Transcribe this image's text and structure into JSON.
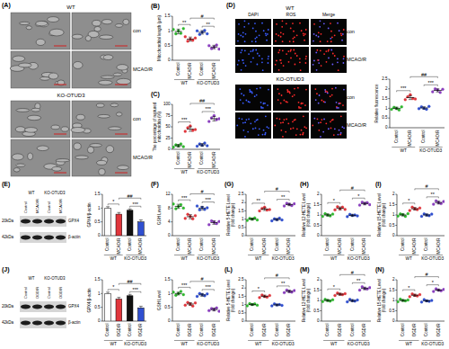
{
  "chart_data": [
    {
      "type": "dot",
      "title": "(B)",
      "y_label": "Mitochondrial length (μm)",
      "categories": [
        "Control",
        "MCAO/R",
        "Control",
        "MCAO/R"
      ],
      "groups": [
        "WT",
        "KO-OTUD3"
      ],
      "values": [
        0.98,
        0.72,
        0.95,
        0.45
      ],
      "errors": [
        0.08,
        0.07,
        0.06,
        0.06
      ],
      "points": [
        [
          1.05,
          0.9,
          1.0,
          0.92,
          1.08
        ],
        [
          0.8,
          0.65,
          0.72,
          0.68,
          0.76
        ],
        [
          1.0,
          0.88,
          0.96,
          1.02,
          0.9
        ],
        [
          0.5,
          0.4,
          0.45,
          0.52,
          0.38
        ]
      ],
      "colors": [
        "#2eb82e",
        "#e0363c",
        "#2f4fd0",
        "#8a3fbf"
      ],
      "ylim": [
        0,
        1.5
      ],
      "yticks": [
        0,
        0.5,
        1,
        1.5
      ],
      "annotations": [
        {
          "text": "**",
          "between": [
            0,
            1
          ]
        },
        {
          "text": "**",
          "between": [
            2,
            3
          ]
        },
        {
          "text": "#",
          "between": [
            1,
            3
          ]
        }
      ]
    },
    {
      "type": "dot",
      "title": "(C)",
      "y_label": "The percentage of ruptured mitochondria (%)",
      "categories": [
        "Control",
        "MCAO/R",
        "Control",
        "MCAO/R"
      ],
      "groups": [
        "WT",
        "KO-OTUD3"
      ],
      "values": [
        8,
        45,
        10,
        68
      ],
      "errors": [
        3,
        5,
        3,
        5
      ],
      "points": [
        [
          5,
          10,
          8,
          12,
          6
        ],
        [
          40,
          48,
          52,
          42,
          44
        ],
        [
          7,
          12,
          9,
          14,
          8
        ],
        [
          62,
          70,
          75,
          66,
          68
        ]
      ],
      "colors": [
        "#2eb82e",
        "#e0363c",
        "#2f4fd0",
        "#8a3fbf"
      ],
      "ylim": [
        0,
        100
      ],
      "yticks": [
        0,
        25,
        50,
        75,
        100
      ],
      "annotations": [
        {
          "text": "***",
          "between": [
            0,
            1
          ]
        },
        {
          "text": "***",
          "between": [
            2,
            3
          ]
        },
        {
          "text": "##",
          "between": [
            1,
            3
          ]
        }
      ]
    },
    {
      "type": "dot",
      "y_label": "Relative fluorescence",
      "categories": [
        "Control",
        "MCAO/R",
        "Control",
        "MCAO/R"
      ],
      "groups": [
        "WT",
        "KO-OTUD3"
      ],
      "values": [
        1.0,
        1.55,
        1.02,
        1.92
      ],
      "errors": [
        0.06,
        0.1,
        0.06,
        0.08
      ],
      "points": [
        [
          0.95,
          1.05,
          1.0,
          0.92,
          1.08
        ],
        [
          1.45,
          1.6,
          1.7,
          1.5,
          1.48
        ],
        [
          0.98,
          1.08,
          1.0,
          0.95,
          1.1
        ],
        [
          1.85,
          2.0,
          1.95,
          1.82,
          1.98
        ]
      ],
      "colors": [
        "#2eb82e",
        "#e0363c",
        "#2f4fd0",
        "#8a3fbf"
      ],
      "ylim": [
        0,
        2.5
      ],
      "yticks": [
        0,
        0.5,
        1,
        1.5,
        2,
        2.5
      ],
      "annotations": [
        {
          "text": "***",
          "between": [
            0,
            1
          ]
        },
        {
          "text": "***",
          "between": [
            2,
            3
          ]
        },
        {
          "text": "##",
          "between": [
            1,
            3
          ]
        }
      ]
    },
    {
      "type": "bar",
      "y_label": "GPX4/β-actin",
      "categories": [
        "Control",
        "MCAO/R",
        "Control",
        "MCAO/R"
      ],
      "groups": [
        "WT",
        "KO-OTUD3"
      ],
      "values": [
        1.0,
        0.78,
        0.92,
        0.5
      ],
      "errors": [
        0.05,
        0.06,
        0.05,
        0.07
      ],
      "colors": [
        "#ffffff",
        "#e0363c",
        "#111111",
        "#2f4fd0"
      ],
      "ylim": [
        0,
        1.5
      ],
      "yticks": [
        0,
        0.5,
        1,
        1.5
      ],
      "annotations": [
        {
          "text": "*",
          "between": [
            0,
            1
          ]
        },
        {
          "text": "***",
          "between": [
            2,
            3
          ]
        },
        {
          "text": "##",
          "between": [
            1,
            3
          ]
        }
      ]
    },
    {
      "type": "dot",
      "title": "(F)",
      "y_label": "GSH Level",
      "categories": [
        "Control",
        "MCAO/R",
        "Control",
        "MCAO/R"
      ],
      "groups": [
        "WT",
        "KO-OTUD3"
      ],
      "values": [
        8.5,
        5.5,
        8.0,
        3.8
      ],
      "errors": [
        0.6,
        0.6,
        0.5,
        0.5
      ],
      "points": [
        [
          9.2,
          7.8,
          8.5,
          9.0,
          8.0
        ],
        [
          5.0,
          6.2,
          5.6,
          4.9,
          5.8
        ],
        [
          8.6,
          7.5,
          8.2,
          7.6,
          8.1
        ],
        [
          3.2,
          4.3,
          3.9,
          3.5,
          4.1
        ]
      ],
      "colors": [
        "#2eb82e",
        "#e0363c",
        "#2f4fd0",
        "#8a3fbf"
      ],
      "ylim": [
        0,
        12
      ],
      "yticks": [
        0,
        4,
        8,
        12
      ],
      "annotations": [
        {
          "text": "***",
          "between": [
            0,
            1
          ]
        },
        {
          "text": "***",
          "between": [
            2,
            3
          ]
        },
        {
          "text": "#",
          "between": [
            1,
            3
          ]
        }
      ]
    },
    {
      "type": "dot",
      "title": "(G)",
      "y_label": "Relative 5-HETE Level (fold change)",
      "categories": [
        "Control",
        "MCAO/R",
        "Control",
        "MCAO/R"
      ],
      "groups": [
        "WT",
        "KO-OTUD3"
      ],
      "values": [
        1.0,
        1.6,
        0.98,
        1.88
      ],
      "errors": [
        0.06,
        0.08,
        0.06,
        0.07
      ],
      "points": [
        [
          0.92,
          1.05,
          1.0,
          1.08,
          0.95
        ],
        [
          1.5,
          1.65,
          1.72,
          1.55,
          1.58
        ],
        [
          0.9,
          1.02,
          0.97,
          1.06,
          0.95
        ],
        [
          1.8,
          1.95,
          1.9,
          1.82,
          1.93
        ]
      ],
      "colors": [
        "#2eb82e",
        "#e0363c",
        "#2f4fd0",
        "#8a3fbf"
      ],
      "ylim": [
        0,
        2.5
      ],
      "yticks": [
        0,
        0.5,
        1,
        1.5,
        2,
        2.5
      ],
      "annotations": [
        {
          "text": "**",
          "between": [
            0,
            1
          ]
        },
        {
          "text": "**",
          "between": [
            2,
            3
          ]
        },
        {
          "text": "#",
          "between": [
            1,
            3
          ]
        }
      ]
    },
    {
      "type": "dot",
      "title": "(H)",
      "y_label": "Relative 12-HETE Level (fold change)",
      "categories": [
        "Control",
        "MCAO/R",
        "Control",
        "MCAO/R"
      ],
      "groups": [
        "WT",
        "KO-OTUD3"
      ],
      "values": [
        1.0,
        1.32,
        0.98,
        1.55
      ],
      "errors": [
        0.05,
        0.07,
        0.05,
        0.06
      ],
      "points": [
        [
          0.94,
          1.06,
          1.0,
          0.96,
          1.04
        ],
        [
          1.25,
          1.4,
          1.3,
          1.38,
          1.27
        ],
        [
          0.92,
          1.03,
          0.98,
          1.0,
          0.96
        ],
        [
          1.48,
          1.62,
          1.55,
          1.6,
          1.5
        ]
      ],
      "colors": [
        "#2eb82e",
        "#e0363c",
        "#2f4fd0",
        "#8a3fbf"
      ],
      "ylim": [
        0,
        2
      ],
      "yticks": [
        0,
        0.5,
        1,
        1.5,
        2
      ],
      "annotations": [
        {
          "text": "*",
          "between": [
            0,
            1
          ]
        },
        {
          "text": "*",
          "between": [
            2,
            3
          ]
        },
        {
          "text": "#",
          "between": [
            1,
            3
          ]
        }
      ]
    },
    {
      "type": "dot",
      "title": "(I)",
      "y_label": "Relative 15-HETE Level (fold change)",
      "categories": [
        "Control",
        "MCAO/R",
        "Control",
        "MCAO/R"
      ],
      "groups": [
        "WT",
        "KO-OTUD3"
      ],
      "values": [
        1.0,
        1.3,
        1.0,
        1.6
      ],
      "errors": [
        0.05,
        0.06,
        0.05,
        0.07
      ],
      "points": [
        [
          0.95,
          1.05,
          1.02,
          0.93,
          1.06
        ],
        [
          1.22,
          1.38,
          1.3,
          1.26,
          1.34
        ],
        [
          0.94,
          1.05,
          1.0,
          0.97,
          1.04
        ],
        [
          1.52,
          1.68,
          1.6,
          1.55,
          1.65
        ]
      ],
      "colors": [
        "#2eb82e",
        "#e0363c",
        "#2f4fd0",
        "#8a3fbf"
      ],
      "ylim": [
        0,
        2
      ],
      "yticks": [
        0,
        0.5,
        1,
        1.5,
        2
      ],
      "annotations": [
        {
          "text": "*",
          "between": [
            0,
            1
          ]
        },
        {
          "text": "**",
          "between": [
            2,
            3
          ]
        },
        {
          "text": "#",
          "between": [
            1,
            3
          ]
        }
      ]
    },
    {
      "type": "bar",
      "y_label": "GPX4/β-actin",
      "categories": [
        "Control",
        "OGD/R",
        "Control",
        "OGD/R"
      ],
      "groups": [
        "WT",
        "KO-OTUD3"
      ],
      "values": [
        1.0,
        0.8,
        0.92,
        0.48
      ],
      "errors": [
        0.05,
        0.06,
        0.05,
        0.06
      ],
      "colors": [
        "#ffffff",
        "#e0363c",
        "#111111",
        "#2f4fd0"
      ],
      "ylim": [
        0,
        1.5
      ],
      "yticks": [
        0,
        0.5,
        1,
        1.5
      ],
      "annotations": [
        {
          "text": "*",
          "between": [
            0,
            1
          ]
        },
        {
          "text": "***",
          "between": [
            2,
            3
          ]
        },
        {
          "text": "##",
          "between": [
            1,
            3
          ]
        }
      ]
    },
    {
      "type": "dot",
      "y_label": "GSH Level",
      "categories": [
        "Control",
        "OGD/R",
        "Control",
        "OGD/R"
      ],
      "groups": [
        "WT",
        "KO-OTUD3"
      ],
      "values": [
        1.0,
        0.62,
        0.95,
        0.42
      ],
      "errors": [
        0.05,
        0.05,
        0.05,
        0.05
      ],
      "points": [
        [
          1.05,
          0.94,
          1.0,
          1.08,
          0.96
        ],
        [
          0.58,
          0.68,
          0.62,
          0.55,
          0.66
        ],
        [
          0.9,
          1.0,
          0.96,
          0.92,
          0.99
        ],
        [
          0.38,
          0.46,
          0.42,
          0.48,
          0.36
        ]
      ],
      "colors": [
        "#2eb82e",
        "#e0363c",
        "#2f4fd0",
        "#8a3fbf"
      ],
      "ylim": [
        0,
        1.5
      ],
      "yticks": [
        0,
        0.5,
        1,
        1.5
      ],
      "annotations": [
        {
          "text": "***",
          "between": [
            0,
            1
          ]
        },
        {
          "text": "***",
          "between": [
            2,
            3
          ]
        },
        {
          "text": "#",
          "between": [
            1,
            3
          ]
        }
      ]
    },
    {
      "type": "dot",
      "title": "(L)",
      "y_label": "Relative 5-HETE Level (fold change)",
      "categories": [
        "Control",
        "OGD/R",
        "Control",
        "OGD/R"
      ],
      "groups": [
        "WT",
        "KO-OTUD3"
      ],
      "values": [
        1.0,
        1.5,
        0.98,
        1.8
      ],
      "errors": [
        0.05,
        0.07,
        0.05,
        0.07
      ],
      "points": [
        [
          0.93,
          1.06,
          1.0,
          1.04,
          0.96
        ],
        [
          1.42,
          1.58,
          1.5,
          1.45,
          1.55
        ],
        [
          0.92,
          1.04,
          0.98,
          1.0,
          0.95
        ],
        [
          1.72,
          1.88,
          1.8,
          1.75,
          1.85
        ]
      ],
      "colors": [
        "#2eb82e",
        "#e0363c",
        "#2f4fd0",
        "#8a3fbf"
      ],
      "ylim": [
        0,
        2.5
      ],
      "yticks": [
        0,
        0.5,
        1,
        1.5,
        2,
        2.5
      ],
      "annotations": [
        {
          "text": "*",
          "between": [
            0,
            1
          ]
        },
        {
          "text": "**",
          "between": [
            2,
            3
          ]
        },
        {
          "text": "#",
          "between": [
            1,
            3
          ]
        }
      ]
    },
    {
      "type": "dot",
      "title": "(M)",
      "y_label": "Relative 12-HETE Level (fold change)",
      "categories": [
        "Control",
        "OGD/R",
        "Control",
        "OGD/R"
      ],
      "groups": [
        "WT",
        "KO-OTUD3"
      ],
      "values": [
        1.0,
        1.3,
        0.99,
        1.58
      ],
      "errors": [
        0.04,
        0.05,
        0.05,
        0.06
      ],
      "points": [
        [
          0.95,
          1.05,
          1.0,
          0.97,
          1.03
        ],
        [
          1.24,
          1.36,
          1.3,
          1.28,
          1.33
        ],
        [
          0.93,
          1.05,
          0.99,
          0.97,
          1.02
        ],
        [
          1.5,
          1.66,
          1.58,
          1.55,
          1.62
        ]
      ],
      "colors": [
        "#2eb82e",
        "#e0363c",
        "#2f4fd0",
        "#8a3fbf"
      ],
      "ylim": [
        0,
        2
      ],
      "yticks": [
        0,
        0.5,
        1,
        1.5,
        2
      ],
      "annotations": [
        {
          "text": "*",
          "between": [
            0,
            1
          ]
        },
        {
          "text": "**",
          "between": [
            2,
            3
          ]
        },
        {
          "text": "#",
          "between": [
            1,
            3
          ]
        }
      ]
    },
    {
      "type": "dot",
      "title": "(N)",
      "y_label": "Relative 15-HETE Level (fold change)",
      "categories": [
        "Control",
        "OGD/R",
        "Control",
        "OGD/R"
      ],
      "groups": [
        "WT",
        "KO-OTUD3"
      ],
      "values": [
        1.0,
        1.25,
        0.98,
        1.5
      ],
      "errors": [
        0.04,
        0.05,
        0.04,
        0.05
      ],
      "points": [
        [
          0.94,
          1.06,
          1.0,
          0.98,
          1.02
        ],
        [
          1.18,
          1.32,
          1.25,
          1.22,
          1.28
        ],
        [
          0.92,
          1.04,
          0.98,
          0.96,
          1.0
        ],
        [
          1.44,
          1.56,
          1.5,
          1.47,
          1.53
        ]
      ],
      "colors": [
        "#2eb82e",
        "#e0363c",
        "#2f4fd0",
        "#8a3fbf"
      ],
      "ylim": [
        0,
        2
      ],
      "yticks": [
        0,
        0.5,
        1,
        1.5,
        2
      ],
      "annotations": [
        {
          "text": "*",
          "between": [
            0,
            1
          ]
        },
        {
          "text": "*",
          "between": [
            2,
            3
          ]
        },
        {
          "text": "#",
          "between": [
            1,
            3
          ]
        }
      ]
    }
  ],
  "panels": {
    "A": {
      "title": "(A)",
      "groups": [
        "WT",
        "KO-OTUD3"
      ],
      "rows": [
        "con",
        "MCAO/R"
      ]
    },
    "D": {
      "title": "(D)",
      "groups": [
        "WT",
        "KO-OTUD3"
      ],
      "columns": [
        "DAPI",
        "ROS",
        "Merge"
      ],
      "rows": [
        "con",
        "MCAO/R"
      ]
    },
    "E": {
      "title": "(E)",
      "groups": [
        "WT",
        "KO-OTUD3"
      ],
      "lanes": [
        "Control",
        "MCAO/R",
        "Control",
        "MCAO/R"
      ],
      "bands": [
        {
          "name": "GPX4",
          "size": "20kDa"
        },
        {
          "name": "β-actin",
          "size": "42kDa"
        }
      ]
    },
    "J": {
      "title": "(J)",
      "groups": [
        "WT",
        "KO-OTUD3"
      ],
      "lanes": [
        "Control",
        "OGD/R",
        "Control",
        "OGD/R"
      ],
      "bands": [
        {
          "name": "GPX4",
          "size": "20kDa"
        },
        {
          "name": "β-actin",
          "size": "42kDa"
        }
      ]
    }
  }
}
